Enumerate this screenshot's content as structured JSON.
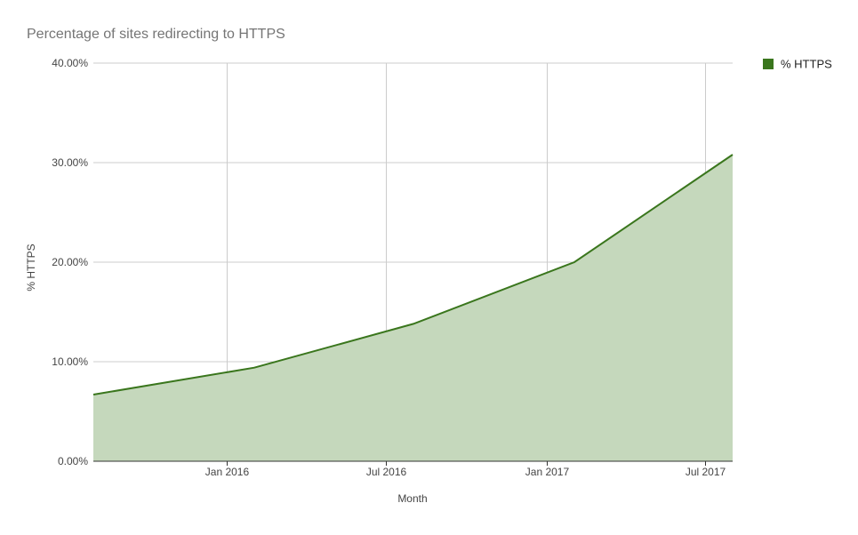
{
  "chart_data": {
    "type": "area",
    "title": "Percentage of sites redirecting to HTTPS",
    "xlabel": "Month",
    "ylabel": "% HTTPS",
    "x_ticks": [
      "Jan 2016",
      "Jul 2016",
      "Jan 2017",
      "Jul 2017"
    ],
    "y_ticks": [
      "0.00%",
      "10.00%",
      "20.00%",
      "30.00%",
      "40.00%"
    ],
    "ylim": [
      0,
      40
    ],
    "xlim": [
      "2015-08-01",
      "2017-08-01"
    ],
    "grid": true,
    "legend_position": "top-right",
    "series": [
      {
        "name": "% HTTPS",
        "color": "#3a761d",
        "fill_color": "#c5d8bc",
        "points": [
          {
            "x": "2015-08-01",
            "y": 6.7
          },
          {
            "x": "2016-02-01",
            "y": 9.4
          },
          {
            "x": "2016-08-01",
            "y": 13.8
          },
          {
            "x": "2017-02-01",
            "y": 20.0
          },
          {
            "x": "2017-08-01",
            "y": 30.8
          }
        ]
      }
    ]
  }
}
